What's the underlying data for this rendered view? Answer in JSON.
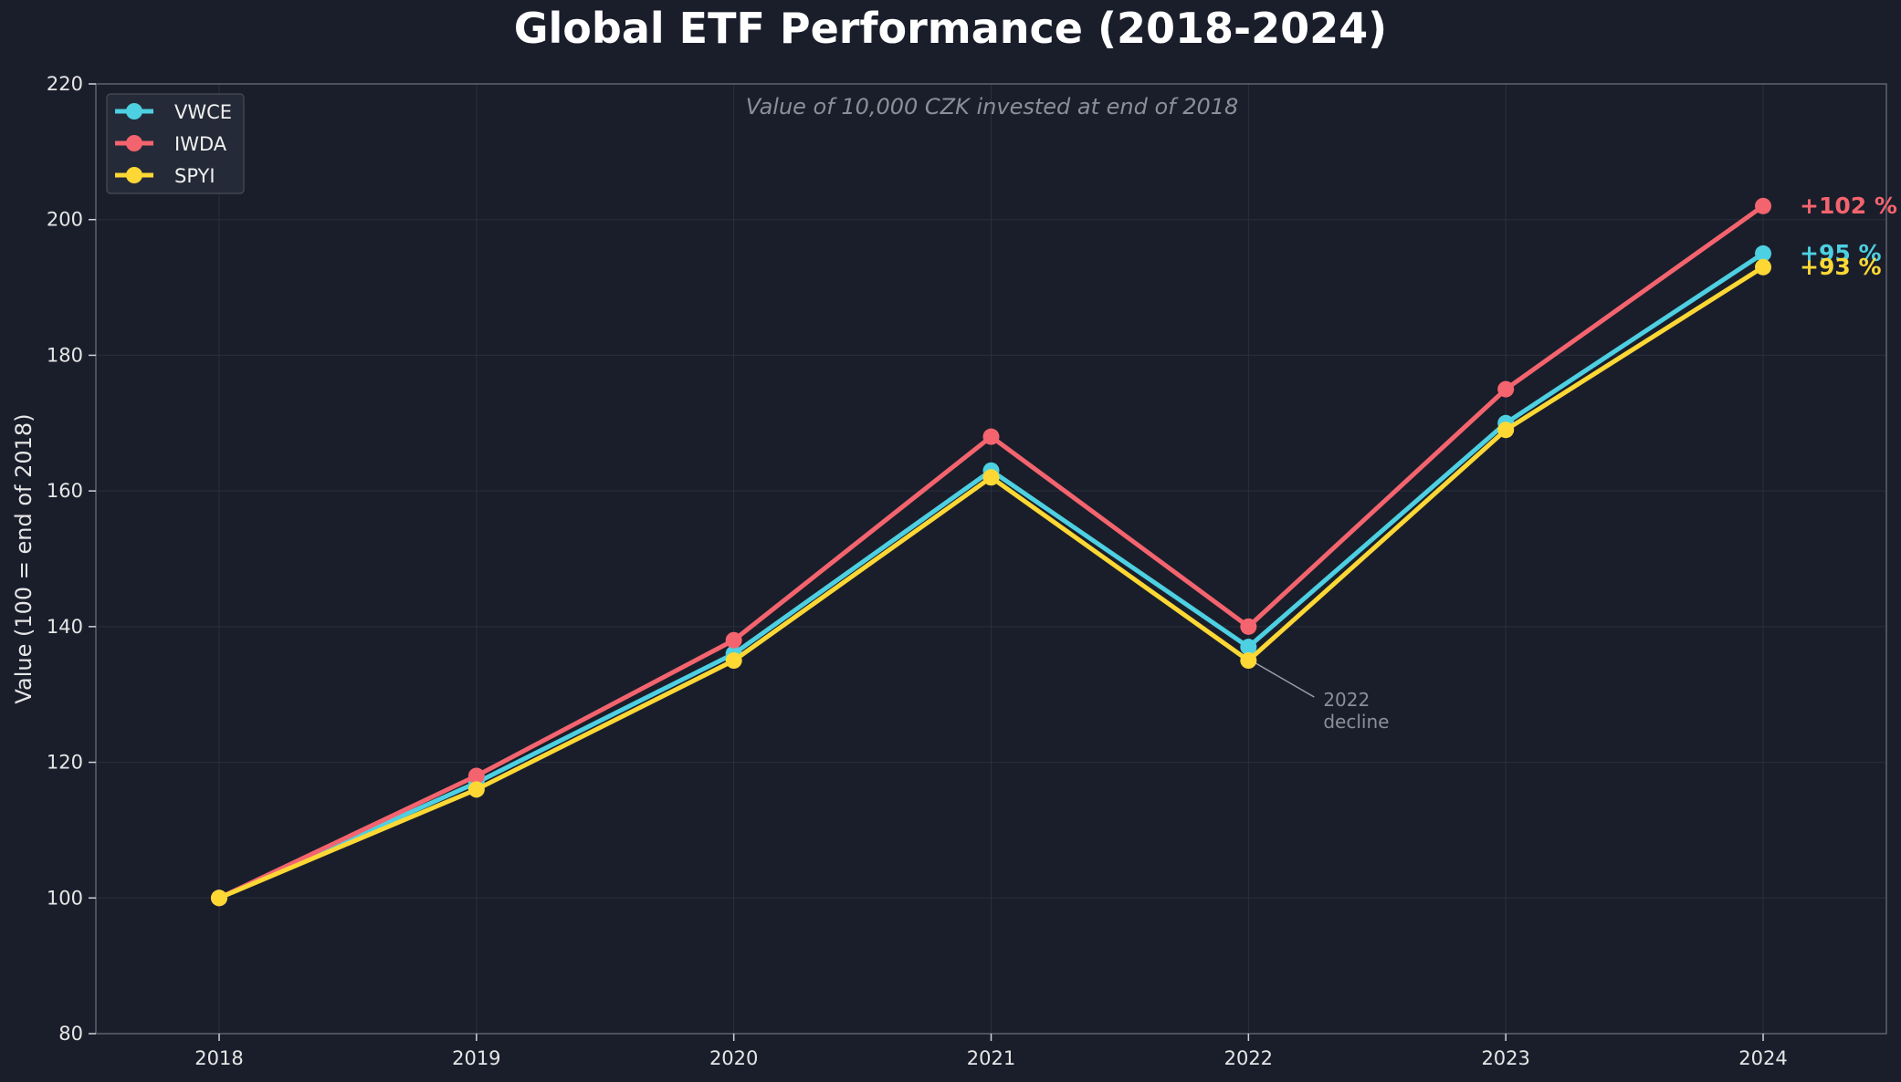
{
  "chart_data": {
    "type": "line",
    "title": "Global ETF Performance (2018-2024)",
    "subtitle": "Value of 10,000 CZK invested at end of 2018",
    "xlabel": "",
    "ylabel": "Value (100 = end of 2018)",
    "x": [
      "2018",
      "2019",
      "2020",
      "2021",
      "2022",
      "2023",
      "2024"
    ],
    "ylim": [
      80,
      220
    ],
    "yticks": [
      80,
      100,
      120,
      140,
      160,
      180,
      200,
      220
    ],
    "grid": true,
    "legend_position": "top-left",
    "series": [
      {
        "name": "VWCE",
        "color": "#4dd0e1",
        "values": [
          100,
          117,
          136,
          163,
          137,
          170,
          195
        ],
        "end_label": "+95 %"
      },
      {
        "name": "IWDA",
        "color": "#f4646e",
        "values": [
          100,
          118,
          138,
          168,
          140,
          175,
          202
        ],
        "end_label": "+102 %"
      },
      {
        "name": "SPYI",
        "color": "#fdd835",
        "values": [
          100,
          116,
          135,
          162,
          135,
          169,
          193
        ],
        "end_label": "+93 %"
      }
    ],
    "annotations": [
      {
        "text": [
          "2022",
          "decline"
        ],
        "x": "2022",
        "y": 135
      }
    ]
  }
}
